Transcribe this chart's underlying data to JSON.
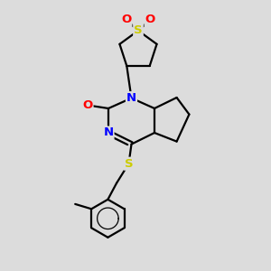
{
  "background_color": "#dcdcdc",
  "bond_color": "#000000",
  "atom_colors": {
    "N": "#0000ff",
    "O": "#ff0000",
    "S_top": "#cccc00",
    "S_bottom": "#cccc00",
    "C": "#000000"
  },
  "lw": 1.6,
  "fs": 9.5,
  "fig_w": 3.0,
  "fig_h": 3.0,
  "dpi": 100
}
